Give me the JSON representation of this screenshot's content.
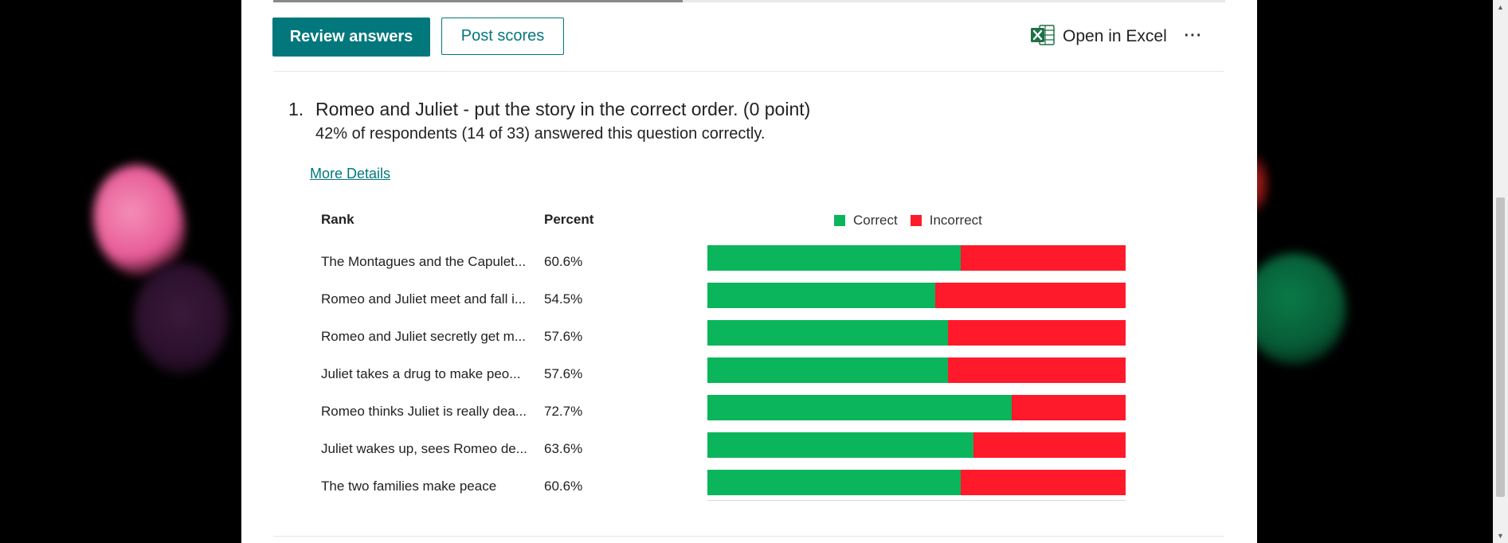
{
  "toolbar": {
    "review_label": "Review answers",
    "post_label": "Post scores",
    "excel_label": "Open in Excel",
    "more_label": "···"
  },
  "page_progress": 0.43,
  "question": {
    "number": "1.",
    "title": "Romeo and Juliet - put the story in the correct order. (0 point)",
    "summary": "42% of respondents (14 of 33) answered this question correctly.",
    "more_details_label": "More Details"
  },
  "table": {
    "rank_header": "Rank",
    "percent_header": "Percent"
  },
  "legend": {
    "correct": "Correct",
    "incorrect": "Incorrect"
  },
  "colors": {
    "accent": "#03787c",
    "correct": "#0bb55c",
    "incorrect": "#ff1a2b",
    "excel_green": "#1e7145"
  },
  "chart_data": {
    "type": "bar",
    "stacked": true,
    "orientation": "horizontal",
    "categories": [
      "The Montagues and the Capulet...",
      "Romeo and Juliet meet and fall i...",
      "Romeo and Juliet secretly get m...",
      "Juliet takes a drug to make peo...",
      "Romeo thinks Juliet is really dea...",
      "Juliet wakes up, sees Romeo de...",
      "The two families make peace"
    ],
    "percent_labels": [
      "60.6%",
      "54.5%",
      "57.6%",
      "57.6%",
      "72.7%",
      "63.6%",
      "60.6%"
    ],
    "series": [
      {
        "name": "Correct",
        "values": [
          60.6,
          54.5,
          57.6,
          57.6,
          72.7,
          63.6,
          60.6
        ]
      },
      {
        "name": "Incorrect",
        "values": [
          39.4,
          45.5,
          42.4,
          42.4,
          27.3,
          36.4,
          39.4
        ]
      }
    ],
    "xlim": [
      0,
      100
    ],
    "legend_position": "top"
  }
}
